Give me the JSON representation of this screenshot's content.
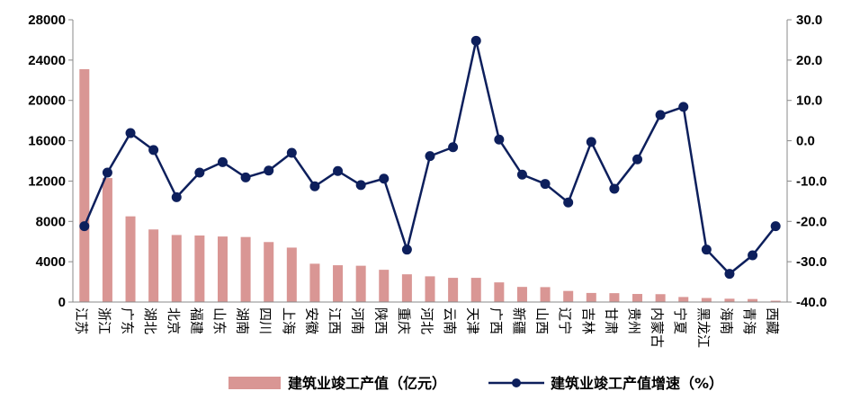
{
  "chart_data": {
    "type": "bar+line",
    "categories": [
      "江苏",
      "浙江",
      "广东",
      "湖北",
      "北京",
      "福建",
      "山东",
      "湖南",
      "四川",
      "上海",
      "安徽",
      "江西",
      "河南",
      "陕西",
      "重庆",
      "河北",
      "云南",
      "天津",
      "广西",
      "新疆",
      "山西",
      "辽宁",
      "吉林",
      "甘肃",
      "贵州",
      "内蒙古",
      "宁夏",
      "黑龙江",
      "海南",
      "青海",
      "西藏"
    ],
    "series": [
      {
        "name": "建筑业竣工产值（亿元）",
        "type": "bar",
        "axis": "left",
        "color": "#d99694",
        "values": [
          23100,
          12300,
          8500,
          7200,
          6650,
          6600,
          6500,
          6450,
          5950,
          5400,
          3800,
          3650,
          3600,
          3200,
          2750,
          2550,
          2400,
          2400,
          1950,
          1500,
          1480,
          1100,
          900,
          880,
          800,
          780,
          500,
          400,
          330,
          300,
          130
        ]
      },
      {
        "name": "建筑业竣工产值增速（%）",
        "type": "line",
        "axis": "right",
        "color": "#0d1f5c",
        "values": [
          -21.2,
          -7.9,
          1.9,
          -2.3,
          -14.0,
          -7.9,
          -5.3,
          -9.1,
          -7.4,
          -3.0,
          -11.3,
          -7.5,
          -11.0,
          -9.4,
          -27.0,
          -3.8,
          -1.6,
          24.8,
          0.3,
          -8.4,
          -10.7,
          -15.3,
          -0.3,
          -11.9,
          -4.6,
          6.4,
          8.4,
          -27.0,
          -33.0,
          -28.4,
          -21.2
        ]
      }
    ],
    "y_left": {
      "min": 0,
      "max": 28000,
      "ticks": [
        "0",
        "4000",
        "8000",
        "12000",
        "16000",
        "20000",
        "24000",
        "28000"
      ]
    },
    "y_right": {
      "min": -40,
      "max": 30,
      "ticks": [
        "-40.0",
        "-30.0",
        "-20.0",
        "-10.0",
        "0.0",
        "10.0",
        "20.0",
        "30.0"
      ]
    },
    "grid": false,
    "legend": {
      "placement": "bottom"
    }
  }
}
